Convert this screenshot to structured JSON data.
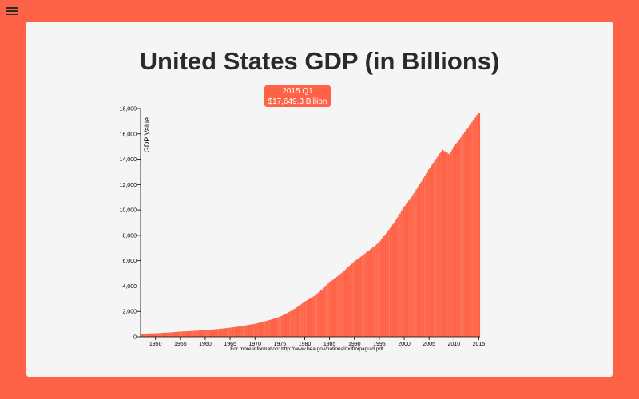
{
  "header": {
    "menu_icon": "hamburger-menu-icon"
  },
  "tooltip": {
    "period": "2015 Q1",
    "value": "$17,649.3 Billion"
  },
  "colors": {
    "page_bg": "#ff6347",
    "card_bg": "#f5f5f5",
    "bar": "#ff6347",
    "menu_icon": "#2a2a2a"
  },
  "chart_data": {
    "type": "bar",
    "title": "United States GDP (in Billions)",
    "ylabel": "GDP Value",
    "footnote": "For more information: http://www.bea.gov/national/pdf/nipaguid.pdf",
    "xlim": [
      1947,
      2015.25
    ],
    "ylim": [
      0,
      18000
    ],
    "x_ticks": [
      "1950",
      "1955",
      "1960",
      "1965",
      "1970",
      "1975",
      "1980",
      "1985",
      "1990",
      "1995",
      "2000",
      "2005",
      "2010",
      "2015"
    ],
    "y_ticks": [
      "0",
      "2,000",
      "4,000",
      "6,000",
      "8,000",
      "10,000",
      "12,000",
      "14,000",
      "16,000",
      "18,000"
    ],
    "frequency": "quarterly",
    "start_year": 1947,
    "annual_anchors": {
      "years": [
        1947,
        1950,
        1955,
        1960,
        1965,
        1970,
        1975,
        1980,
        1982,
        1985,
        1990,
        1995,
        2000,
        2005,
        2007.75,
        2009.25,
        2010,
        2015.0
      ],
      "values": [
        243,
        280,
        415,
        526,
        720,
        1030,
        1590,
        2780,
        3240,
        4300,
        5950,
        7450,
        10200,
        13200,
        14750,
        14380,
        14950,
        17649.3
      ]
    }
  }
}
